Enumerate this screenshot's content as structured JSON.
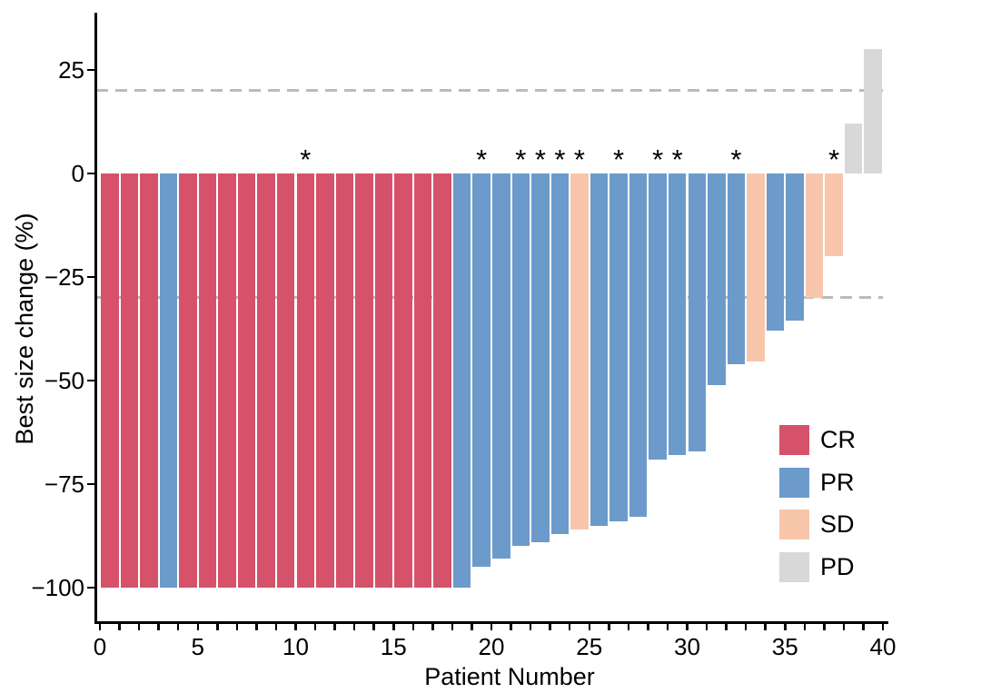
{
  "chart_data": {
    "type": "bar",
    "title": "",
    "xlabel": "Patient Number",
    "ylabel": "Best size change (%)",
    "x_ticks": [
      0,
      5,
      10,
      15,
      20,
      25,
      30,
      35,
      40
    ],
    "x_minor_tick_step": 1,
    "x_axis_range": [
      0,
      40
    ],
    "y_ticks": [
      25,
      0,
      -25,
      -50,
      -75,
      -100
    ],
    "ylim": [
      -100,
      33
    ],
    "grid": "off",
    "reference_lines": [
      {
        "value": 20,
        "style": "dashed",
        "color": "#BBBBBB"
      },
      {
        "value": -30,
        "style": "dashed",
        "color": "#BBBBBB"
      }
    ],
    "legend_position": "right-middle",
    "legend": [
      {
        "label": "CR",
        "color": "#D6526B"
      },
      {
        "label": "PR",
        "color": "#6C9ACA"
      },
      {
        "label": "SD",
        "color": "#F8C6AB"
      },
      {
        "label": "PD",
        "color": "#D8D8D8"
      }
    ],
    "annotation_symbol": "*",
    "patients": [
      {
        "n": 1,
        "response": "CR",
        "value": -100,
        "star": false
      },
      {
        "n": 2,
        "response": "CR",
        "value": -100,
        "star": false
      },
      {
        "n": 3,
        "response": "CR",
        "value": -100,
        "star": false
      },
      {
        "n": 4,
        "response": "PR",
        "value": -100,
        "star": false
      },
      {
        "n": 5,
        "response": "CR",
        "value": -100,
        "star": false
      },
      {
        "n": 6,
        "response": "CR",
        "value": -100,
        "star": false
      },
      {
        "n": 7,
        "response": "CR",
        "value": -100,
        "star": false
      },
      {
        "n": 8,
        "response": "CR",
        "value": -100,
        "star": false
      },
      {
        "n": 9,
        "response": "CR",
        "value": -100,
        "star": false
      },
      {
        "n": 10,
        "response": "CR",
        "value": -100,
        "star": false
      },
      {
        "n": 11,
        "response": "CR",
        "value": -100,
        "star": true
      },
      {
        "n": 12,
        "response": "CR",
        "value": -100,
        "star": false
      },
      {
        "n": 13,
        "response": "CR",
        "value": -100,
        "star": false
      },
      {
        "n": 14,
        "response": "CR",
        "value": -100,
        "star": false
      },
      {
        "n": 15,
        "response": "CR",
        "value": -100,
        "star": false
      },
      {
        "n": 16,
        "response": "CR",
        "value": -100,
        "star": false
      },
      {
        "n": 17,
        "response": "CR",
        "value": -100,
        "star": false
      },
      {
        "n": 18,
        "response": "CR",
        "value": -100,
        "star": false
      },
      {
        "n": 19,
        "response": "PR",
        "value": -100,
        "star": false
      },
      {
        "n": 20,
        "response": "PR",
        "value": -95,
        "star": true
      },
      {
        "n": 21,
        "response": "PR",
        "value": -93,
        "star": false
      },
      {
        "n": 22,
        "response": "PR",
        "value": -90,
        "star": true
      },
      {
        "n": 23,
        "response": "PR",
        "value": -89,
        "star": true
      },
      {
        "n": 24,
        "response": "PR",
        "value": -87,
        "star": true
      },
      {
        "n": 25,
        "response": "SD",
        "value": -86,
        "star": true
      },
      {
        "n": 26,
        "response": "PR",
        "value": -85,
        "star": false
      },
      {
        "n": 27,
        "response": "PR",
        "value": -84,
        "star": true
      },
      {
        "n": 28,
        "response": "PR",
        "value": -83,
        "star": false
      },
      {
        "n": 29,
        "response": "PR",
        "value": -69,
        "star": true
      },
      {
        "n": 30,
        "response": "PR",
        "value": -68,
        "star": true
      },
      {
        "n": 31,
        "response": "PR",
        "value": -67,
        "star": false
      },
      {
        "n": 32,
        "response": "PR",
        "value": -51,
        "star": false
      },
      {
        "n": 33,
        "response": "PR",
        "value": -46,
        "star": true
      },
      {
        "n": 34,
        "response": "SD",
        "value": -45.5,
        "star": false
      },
      {
        "n": 35,
        "response": "PR",
        "value": -38,
        "star": false
      },
      {
        "n": 36,
        "response": "PR",
        "value": -35.5,
        "star": false
      },
      {
        "n": 37,
        "response": "SD",
        "value": -30,
        "star": false
      },
      {
        "n": 38,
        "response": "SD",
        "value": -20,
        "star": true
      },
      {
        "n": 39,
        "response": "PD",
        "value": 12,
        "star": false
      },
      {
        "n": 40,
        "response": "PD",
        "value": 30,
        "star": false
      }
    ]
  },
  "colors": {
    "axis": "#000000",
    "background": "#ffffff",
    "text": "#000000"
  }
}
